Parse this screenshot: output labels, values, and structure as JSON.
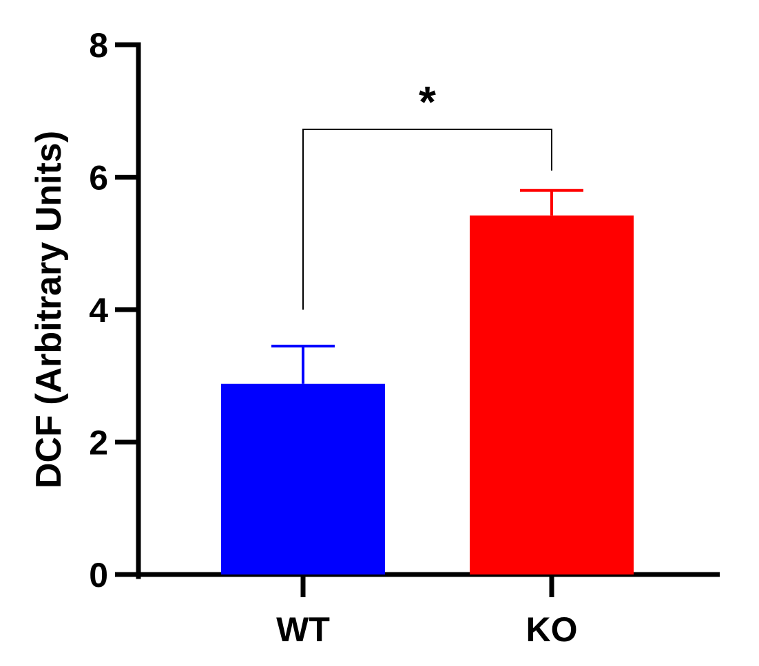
{
  "chart_data": {
    "type": "bar",
    "title": "",
    "xlabel": "",
    "ylabel": "DCF (Arbitrary Units)",
    "ylim": [
      0,
      8
    ],
    "yticks": [
      0,
      2,
      4,
      6,
      8
    ],
    "categories": [
      "WT",
      "KO"
    ],
    "values": [
      2.88,
      5.42
    ],
    "errors": [
      0.57,
      0.38
    ],
    "colors": [
      "#0000ff",
      "#ff0000"
    ],
    "grid": false,
    "significance": {
      "from": "WT",
      "to": "KO",
      "label": "*"
    }
  }
}
